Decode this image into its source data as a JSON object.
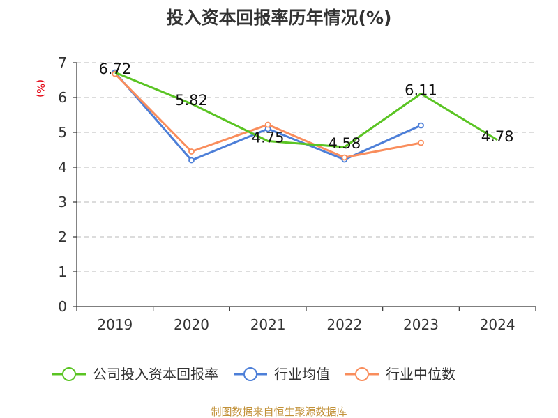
{
  "chart_data": {
    "type": "line",
    "title": "投入资本回报率历年情况(%)",
    "ylabel": "(%)",
    "xlabel": "",
    "ylim": [
      0,
      7
    ],
    "yticks": [
      0,
      1,
      2,
      3,
      4,
      5,
      6,
      7
    ],
    "categories": [
      "2019",
      "2020",
      "2021",
      "2022",
      "2023",
      "2024"
    ],
    "grid": true,
    "legend_position": "bottom",
    "series": [
      {
        "name": "公司投入资本回报率",
        "color": "#5ac423",
        "values": [
          6.72,
          5.82,
          4.75,
          4.58,
          6.11,
          4.78
        ],
        "labels": [
          "6.72",
          "5.82",
          "4.75",
          "4.58",
          "6.11",
          "4.78"
        ]
      },
      {
        "name": "行业均值",
        "color": "#4d7fd8",
        "values": [
          6.72,
          4.2,
          5.1,
          4.22,
          5.2,
          null
        ]
      },
      {
        "name": "行业中位数",
        "color": "#f98d5c",
        "values": [
          6.68,
          4.45,
          5.22,
          4.28,
          4.7,
          null
        ]
      }
    ],
    "source": "制图数据来自恒生聚源数据库"
  }
}
